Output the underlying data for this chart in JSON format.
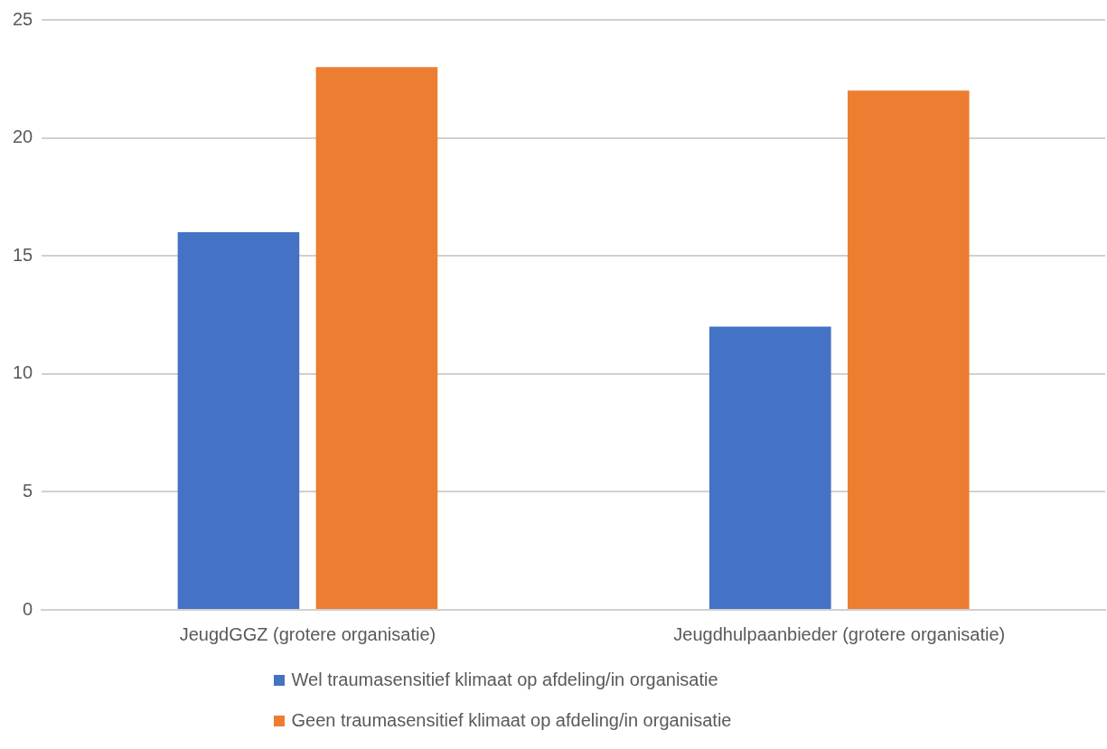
{
  "chart_data": {
    "type": "bar",
    "categories": [
      "JeugdGGZ (grotere organisatie)",
      "Jeugdhulpaanbieder (grotere organisatie)"
    ],
    "series": [
      {
        "name": "Wel traumasensitief klimaat op afdeling/in organisatie",
        "color": "#4472c4",
        "values": [
          16,
          12
        ]
      },
      {
        "name": "Geen traumasensitief klimaat op afdeling/in organisatie",
        "color": "#ed7d31",
        "values": [
          23,
          22
        ]
      }
    ],
    "ylim": [
      0,
      25
    ],
    "yticks": [
      0,
      5,
      10,
      15,
      20,
      25
    ],
    "grid": "y",
    "legend": "bottom"
  }
}
